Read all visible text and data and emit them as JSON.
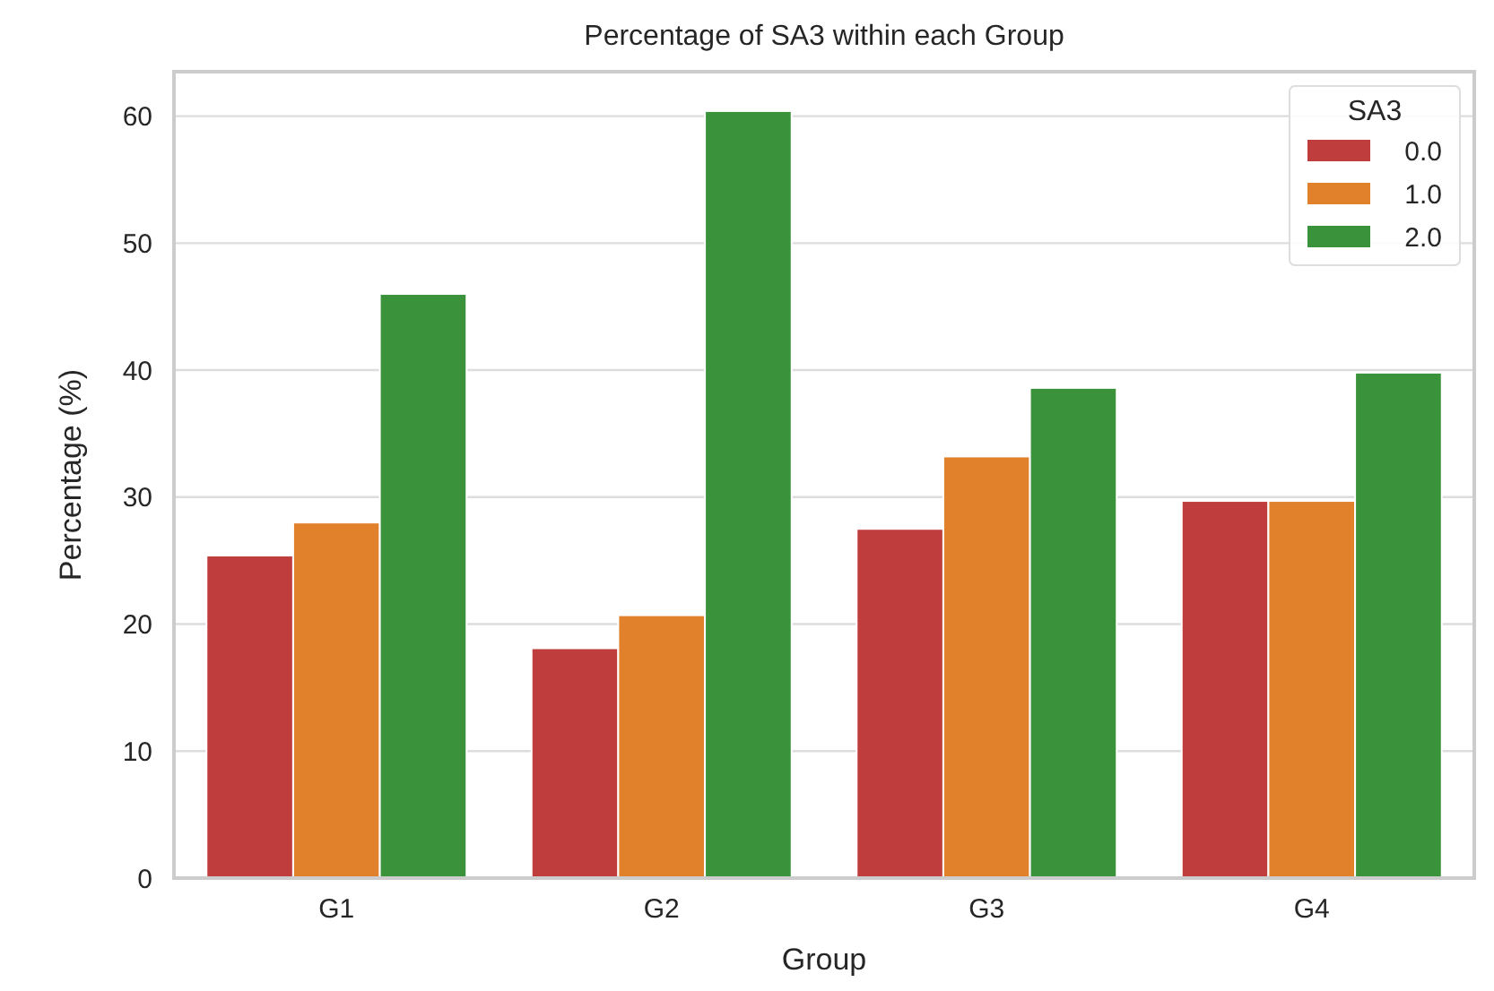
{
  "chart_data": {
    "type": "bar",
    "title": "Percentage of SA3 within each Group",
    "xlabel": "Group",
    "ylabel": "Percentage (%)",
    "legend_title": "SA3",
    "categories": [
      "G1",
      "G2",
      "G3",
      "G4"
    ],
    "series": [
      {
        "name": "0.0",
        "color": "#c03d3e",
        "values": [
          25.4,
          18.1,
          27.5,
          29.7
        ]
      },
      {
        "name": "1.0",
        "color": "#e1812c",
        "values": [
          28.0,
          20.7,
          33.2,
          29.7
        ]
      },
      {
        "name": "2.0",
        "color": "#3a923a",
        "values": [
          46.0,
          60.4,
          38.6,
          39.8
        ]
      }
    ],
    "ylim": [
      0,
      63.5
    ],
    "yticks": [
      0,
      10,
      20,
      30,
      40,
      50,
      60
    ],
    "grid": "y",
    "legend": "top right"
  }
}
